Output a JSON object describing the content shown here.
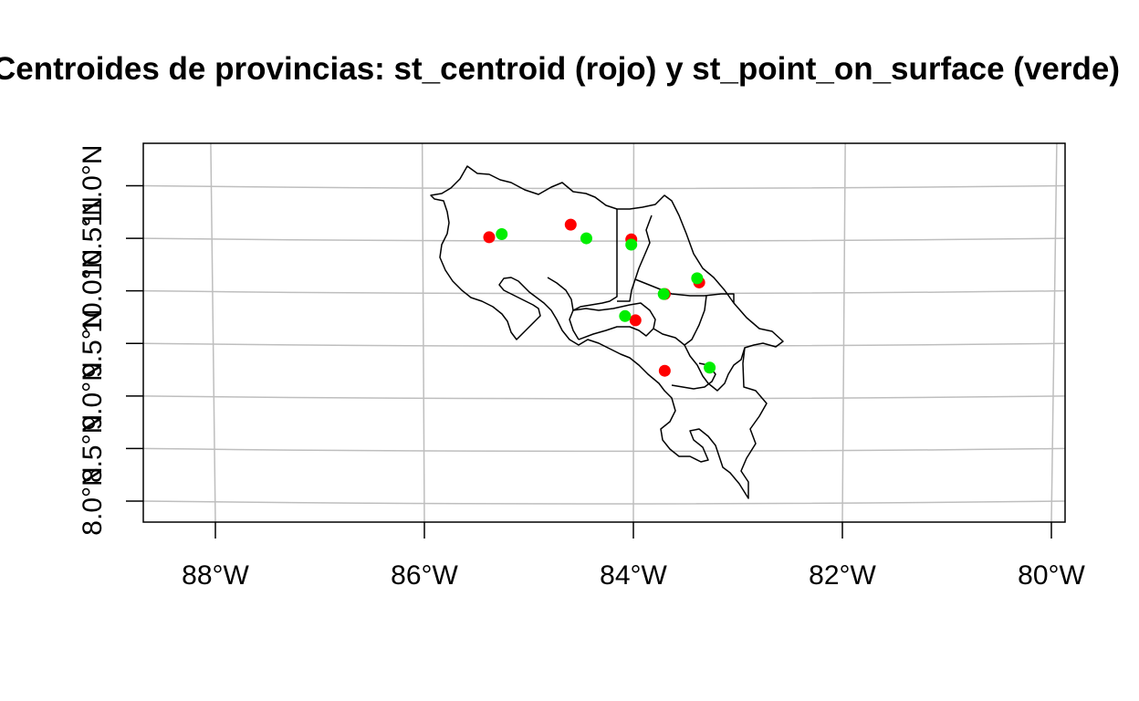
{
  "title": "Centroides de provincias: st_centroid (rojo) y st_point_on_surface (verde)",
  "chart_data": {
    "type": "scatter",
    "title": "Centroides de provincias: st_centroid (rojo) y st_point_on_surface (verde)",
    "xlim": [
      -88.7,
      -79.9
    ],
    "ylim": [
      7.95,
      11.55
    ],
    "x_ticks": [
      -88,
      -86,
      -84,
      -82,
      -80
    ],
    "x_tick_labels": [
      "88°W",
      "86°W",
      "84°W",
      "82°W",
      "80°W"
    ],
    "y_ticks": [
      8.0,
      8.5,
      9.0,
      9.5,
      10.0,
      10.5,
      11.0
    ],
    "y_tick_labels": [
      "8.0°N",
      "8.5°N",
      "9.0°N",
      "9.5°N",
      "10.0°N",
      "10.5°N",
      "11.0°N"
    ],
    "grid": true,
    "colors": {
      "centroid": "#ff0000",
      "point_on_surface": "#00ee00",
      "grid": "#bebebe",
      "outline": "#000000"
    },
    "series": [
      {
        "name": "st_centroid (rojo)",
        "color": "#ff0000",
        "points": [
          {
            "x": -85.38,
            "y": 10.51
          },
          {
            "x": -84.6,
            "y": 10.63
          },
          {
            "x": -84.02,
            "y": 10.49
          },
          {
            "x": -83.37,
            "y": 10.08
          },
          {
            "x": -83.7,
            "y": 9.97
          },
          {
            "x": -83.98,
            "y": 9.72
          },
          {
            "x": -83.7,
            "y": 9.24
          }
        ]
      },
      {
        "name": "st_point_on_surface (verde)",
        "color": "#00ee00",
        "points": [
          {
            "x": -85.26,
            "y": 10.54
          },
          {
            "x": -84.45,
            "y": 10.5
          },
          {
            "x": -84.02,
            "y": 10.44
          },
          {
            "x": -83.39,
            "y": 10.12
          },
          {
            "x": -83.71,
            "y": 9.97
          },
          {
            "x": -84.08,
            "y": 9.76
          },
          {
            "x": -83.27,
            "y": 9.27
          }
        ]
      }
    ]
  }
}
